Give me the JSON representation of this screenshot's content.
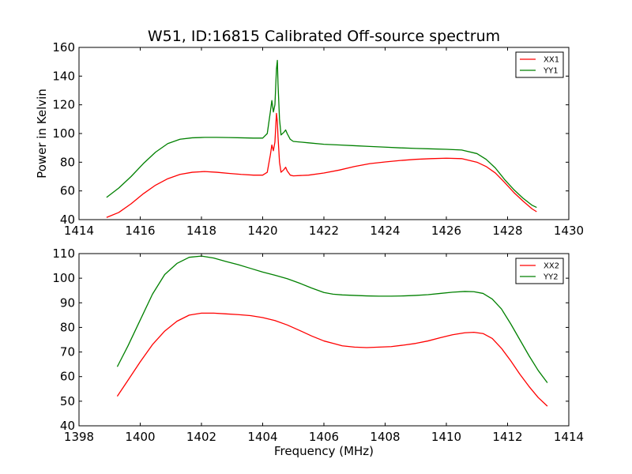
{
  "chart_data": [
    {
      "type": "line",
      "title": "W51, ID:16815 Calibrated Off-source spectrum",
      "xlabel": "",
      "ylabel": "Power in Kelvin",
      "xlim": [
        1414,
        1430
      ],
      "ylim": [
        40,
        160
      ],
      "xticks": [
        "1414",
        "1416",
        "1418",
        "1420",
        "1422",
        "1424",
        "1426",
        "1428",
        "1430"
      ],
      "yticks": [
        "40",
        "60",
        "80",
        "100",
        "120",
        "140",
        "160"
      ],
      "legend": "top-right",
      "grid": false,
      "series": [
        {
          "name": "XX1",
          "color": "#ff0000",
          "x": [
            1414.9,
            1415.3,
            1415.7,
            1416.1,
            1416.5,
            1416.9,
            1417.3,
            1417.7,
            1418.1,
            1418.5,
            1418.9,
            1419.3,
            1419.7,
            1420.0,
            1420.15,
            1420.25,
            1420.3,
            1420.35,
            1420.4,
            1420.45,
            1420.48,
            1420.5,
            1420.55,
            1420.6,
            1420.7,
            1420.75,
            1420.8,
            1420.9,
            1421.0,
            1421.5,
            1422.0,
            1422.5,
            1423.0,
            1423.5,
            1424.0,
            1424.5,
            1425.0,
            1425.5,
            1426.0,
            1426.5,
            1427.0,
            1427.3,
            1427.6,
            1427.9,
            1428.2,
            1428.5,
            1428.8,
            1428.95
          ],
          "y": [
            41.5,
            45,
            51,
            58,
            64,
            68.5,
            71.5,
            73,
            73.5,
            73,
            72.2,
            71.5,
            71,
            71,
            73,
            85,
            92,
            88,
            94,
            114,
            108,
            98,
            80,
            73,
            75,
            76.5,
            74,
            71,
            70.5,
            71,
            72.5,
            74.5,
            77,
            79,
            80.2,
            81.2,
            82,
            82.5,
            82.8,
            82.5,
            80,
            77,
            72.5,
            66,
            59,
            53,
            47.5,
            45.5
          ]
        },
        {
          "name": "YY1",
          "color": "#008000",
          "x": [
            1414.9,
            1415.3,
            1415.7,
            1416.1,
            1416.5,
            1416.9,
            1417.3,
            1417.7,
            1418.1,
            1418.5,
            1418.9,
            1419.3,
            1419.7,
            1420.0,
            1420.15,
            1420.25,
            1420.3,
            1420.35,
            1420.4,
            1420.45,
            1420.48,
            1420.5,
            1420.55,
            1420.6,
            1420.7,
            1420.75,
            1420.8,
            1420.9,
            1421.0,
            1421.5,
            1422.0,
            1422.5,
            1423.0,
            1423.5,
            1424.0,
            1424.5,
            1425.0,
            1425.5,
            1426.0,
            1426.5,
            1427.0,
            1427.3,
            1427.6,
            1427.9,
            1428.2,
            1428.5,
            1428.8,
            1428.95
          ],
          "y": [
            55.5,
            62,
            70,
            79,
            87,
            93,
            96,
            97,
            97.3,
            97.3,
            97.2,
            97,
            96.8,
            96.8,
            100,
            115,
            123,
            115,
            120,
            145,
            151,
            135,
            110,
            99,
            101,
            102.5,
            100,
            96,
            94.5,
            93.5,
            92.5,
            92,
            91.5,
            91,
            90.5,
            90,
            89.6,
            89.3,
            89,
            88.5,
            86,
            82,
            76,
            68,
            61,
            55,
            50,
            48.5
          ]
        }
      ]
    },
    {
      "type": "line",
      "title": "",
      "xlabel": "Frequency (MHz)",
      "ylabel": "",
      "xlim": [
        1398,
        1414
      ],
      "ylim": [
        40,
        110
      ],
      "xticks": [
        "1398",
        "1400",
        "1402",
        "1404",
        "1406",
        "1408",
        "1410",
        "1412",
        "1414"
      ],
      "yticks": [
        "40",
        "50",
        "60",
        "70",
        "80",
        "90",
        "100",
        "110"
      ],
      "legend": "top-right",
      "grid": false,
      "series": [
        {
          "name": "XX2",
          "color": "#ff0000",
          "x": [
            1399.25,
            1399.6,
            1400.0,
            1400.4,
            1400.8,
            1401.2,
            1401.6,
            1402.0,
            1402.4,
            1402.8,
            1403.2,
            1403.6,
            1404.0,
            1404.4,
            1404.8,
            1405.2,
            1405.6,
            1406.0,
            1406.3,
            1406.6,
            1407.0,
            1407.4,
            1407.8,
            1408.2,
            1408.6,
            1409.0,
            1409.4,
            1409.8,
            1410.2,
            1410.6,
            1410.9,
            1411.2,
            1411.5,
            1411.8,
            1412.1,
            1412.4,
            1412.7,
            1413.0,
            1413.3
          ],
          "y": [
            52,
            58.5,
            66,
            73,
            78.5,
            82.5,
            85,
            85.8,
            85.8,
            85.5,
            85.2,
            84.8,
            84,
            82.8,
            81,
            78.8,
            76.5,
            74.5,
            73.5,
            72.5,
            72,
            71.8,
            72,
            72.2,
            72.8,
            73.5,
            74.5,
            75.8,
            77,
            77.8,
            78,
            77.5,
            75.5,
            71.5,
            66.5,
            61,
            56,
            51.5,
            48
          ]
        },
        {
          "name": "YY2",
          "color": "#008000",
          "x": [
            1399.25,
            1399.6,
            1400.0,
            1400.4,
            1400.8,
            1401.2,
            1401.6,
            1402.0,
            1402.4,
            1402.8,
            1403.2,
            1403.6,
            1404.0,
            1404.4,
            1404.8,
            1405.2,
            1405.6,
            1406.0,
            1406.3,
            1406.6,
            1407.0,
            1407.4,
            1407.8,
            1408.2,
            1408.6,
            1409.0,
            1409.4,
            1409.8,
            1410.2,
            1410.6,
            1410.9,
            1411.2,
            1411.5,
            1411.8,
            1412.1,
            1412.4,
            1412.7,
            1413.0,
            1413.3
          ],
          "y": [
            64,
            72.5,
            83,
            93.5,
            101.5,
            106,
            108.5,
            109,
            108.2,
            106.8,
            105.5,
            104,
            102.5,
            101.2,
            99.8,
            98,
            96,
            94.2,
            93.5,
            93.2,
            93,
            92.8,
            92.7,
            92.7,
            92.8,
            93,
            93.3,
            93.8,
            94.3,
            94.6,
            94.5,
            93.8,
            91.5,
            87.5,
            81.5,
            75,
            68.5,
            62.5,
            57.5
          ]
        }
      ]
    }
  ]
}
